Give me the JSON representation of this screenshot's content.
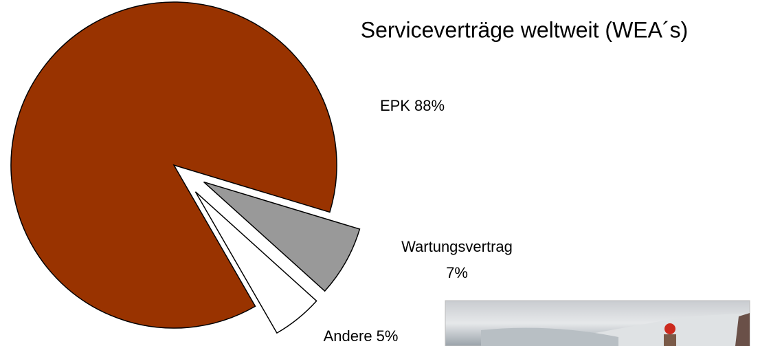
{
  "chart_data": {
    "type": "pie",
    "title": "Serviceverträge weltweit (WEA´s)",
    "categories": [
      "EPK",
      "Wartungsvertrag",
      "Andere"
    ],
    "values": [
      88,
      7,
      5
    ],
    "value_labels": [
      "88%",
      "7%",
      "5%"
    ],
    "colors": [
      "#993300",
      "#999999",
      "#ffffff"
    ]
  }
}
